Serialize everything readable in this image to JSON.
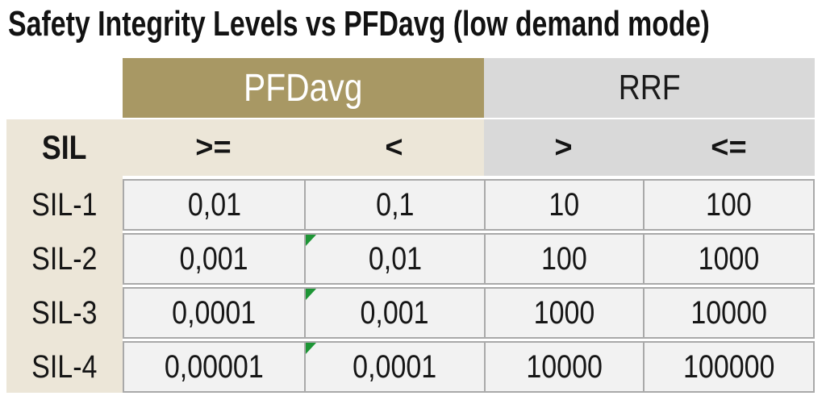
{
  "colors": {
    "pfdavg_header_bg": "#a89864",
    "rrf_header_bg": "#d9d9d9",
    "sil_column_bg": "#ece6d8",
    "cell_bg": "#f2f2f2",
    "cell_border": "#a9a9a9",
    "flag_green": "#1d9535",
    "pfdavg_header_text": "#ffffff",
    "text": "#141414"
  },
  "chart_data": {
    "type": "table",
    "title": "Safety Integrity Levels vs PFDavg (low demand mode)",
    "row_header_label": "SIL",
    "group_headers": [
      "PFDavg",
      "RRF"
    ],
    "column_headers": [
      ">=",
      "<",
      ">",
      "<="
    ],
    "rows": [
      {
        "label": "SIL-1",
        "values": [
          "0,01",
          "0,1",
          "10",
          "100"
        ],
        "flag": false
      },
      {
        "label": "SIL-2",
        "values": [
          "0,001",
          "0,01",
          "100",
          "1000"
        ],
        "flag": true
      },
      {
        "label": "SIL-3",
        "values": [
          "0,0001",
          "0,001",
          "1000",
          "10000"
        ],
        "flag": true
      },
      {
        "label": "SIL-4",
        "values": [
          "0,00001",
          "0,0001",
          "10000",
          "100000"
        ],
        "flag": true
      }
    ]
  }
}
